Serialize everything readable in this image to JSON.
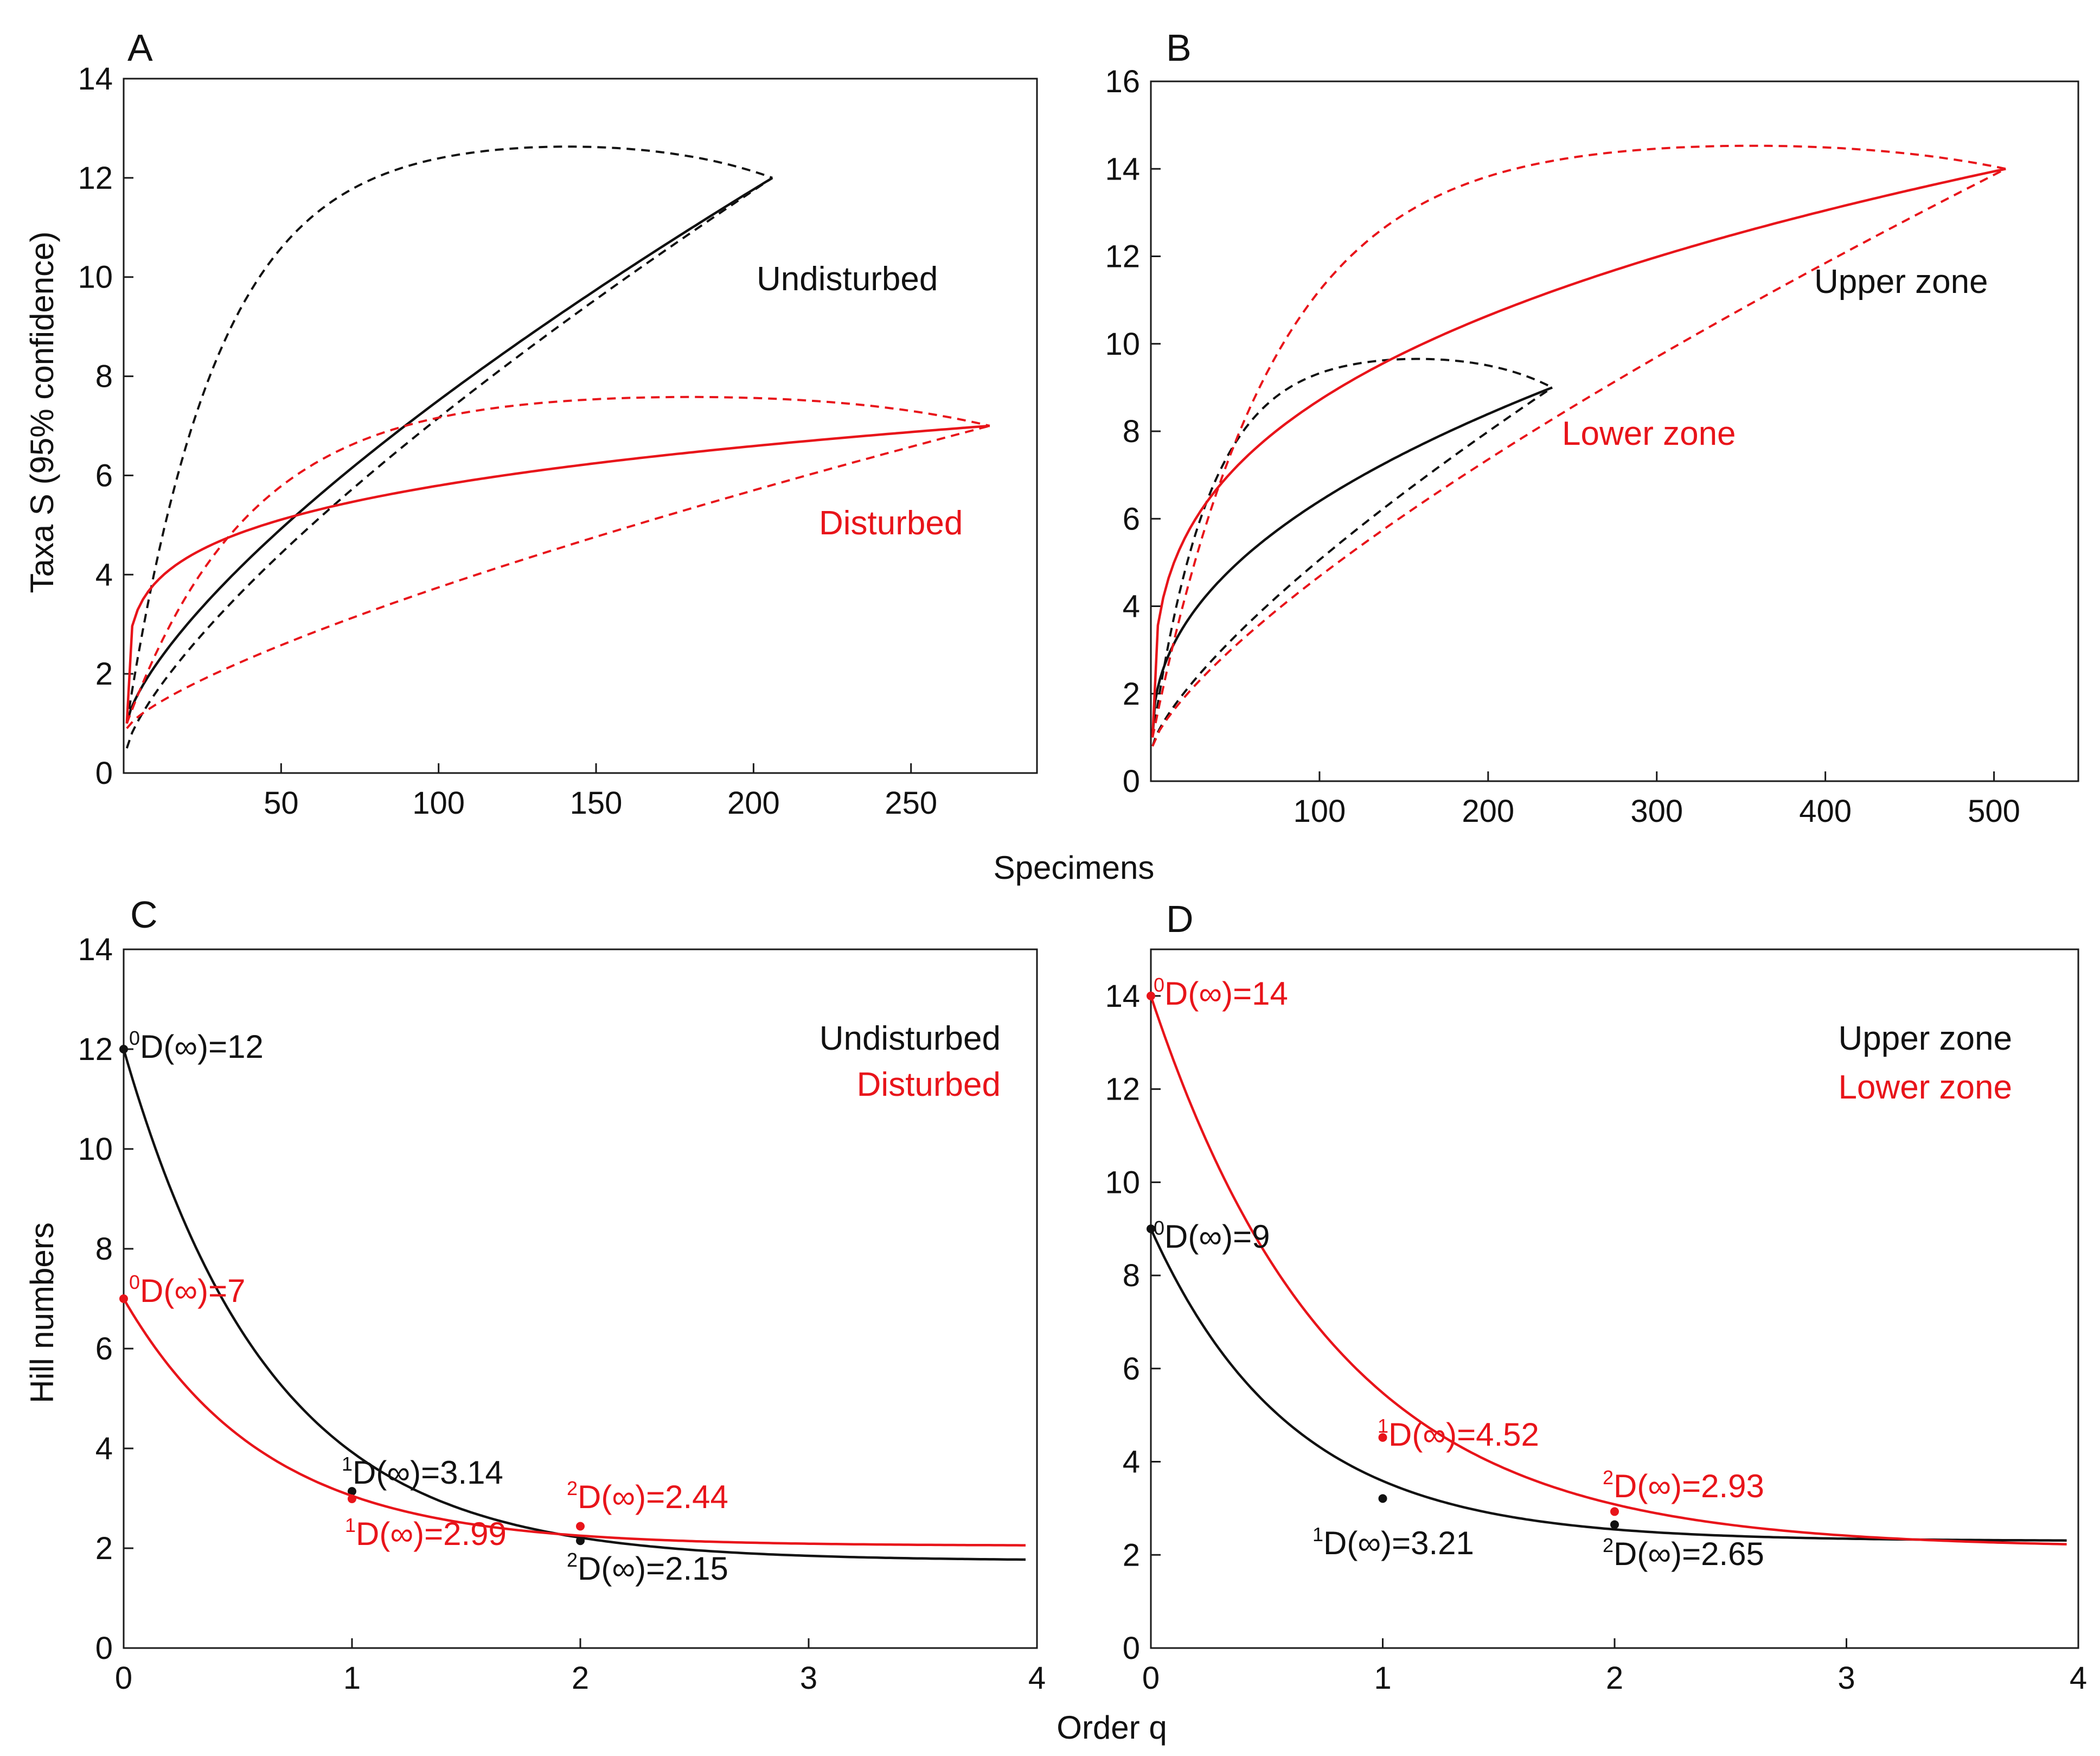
{
  "figure": {
    "x_label_top": "Specimens",
    "y_label_top": "Taxa S (95% confidence)",
    "x_label_bottom": "Order q",
    "y_label_bottom": "Hill numbers"
  },
  "colors": {
    "black": "#111111",
    "red": "#e8141a"
  },
  "chart_data": [
    {
      "panel": "A",
      "type": "line",
      "title": "A",
      "xlim": [
        0,
        290
      ],
      "ylim": [
        0,
        14
      ],
      "x_ticks": [
        50,
        100,
        150,
        200,
        250
      ],
      "y_ticks": [
        0,
        2,
        4,
        6,
        8,
        10,
        12,
        14
      ],
      "series": [
        {
          "name": "Undisturbed",
          "color": "black",
          "n": 206,
          "final": 12,
          "shape": 0.72,
          "upper_peak": 12.8,
          "lower_start": 0.5
        },
        {
          "name": "Disturbed",
          "color": "red",
          "n": 275,
          "final": 7,
          "shape": 0.22,
          "upper_peak": 7.7,
          "lower_start": 0.9
        }
      ],
      "labels": [
        {
          "text": "Undisturbed",
          "color": "black"
        },
        {
          "text": "Disturbed",
          "color": "red"
        }
      ]
    },
    {
      "panel": "B",
      "type": "line",
      "title": "B",
      "xlim": [
        0,
        550
      ],
      "ylim": [
        0,
        16
      ],
      "x_ticks": [
        100,
        200,
        300,
        400,
        500
      ],
      "y_ticks": [
        0,
        2,
        4,
        6,
        8,
        10,
        12,
        14,
        16
      ],
      "series": [
        {
          "name": "Upper zone",
          "color": "black",
          "n": 238,
          "final": 9,
          "shape": 0.45,
          "upper_peak": 9.8,
          "lower_start": 0.8
        },
        {
          "name": "Lower zone",
          "color": "red",
          "n": 507,
          "final": 14,
          "shape": 0.32,
          "upper_peak": 14.7,
          "lower_start": 0.8
        }
      ],
      "labels": [
        {
          "text": "Upper zone",
          "color": "black"
        },
        {
          "text": "Lower zone",
          "color": "red"
        }
      ]
    },
    {
      "panel": "C",
      "type": "line",
      "title": "C",
      "xlim": [
        0,
        4
      ],
      "ylim": [
        0,
        14
      ],
      "x_ticks": [
        0,
        1,
        2,
        3,
        4
      ],
      "y_ticks": [
        0,
        2,
        4,
        6,
        8,
        10,
        12,
        14
      ],
      "series": [
        {
          "name": "Undisturbed",
          "color": "black",
          "D0": 12,
          "Dinf": 1.75,
          "k": 1.55,
          "points": [
            [
              0,
              12
            ],
            [
              1,
              3.14
            ],
            [
              2,
              2.15
            ]
          ]
        },
        {
          "name": "Disturbed",
          "color": "red",
          "D0": 7,
          "Dinf": 2.05,
          "k": 1.6,
          "points": [
            [
              0,
              7
            ],
            [
              1,
              2.99
            ],
            [
              2,
              2.44
            ]
          ]
        }
      ],
      "legend": [
        {
          "text": "Undisturbed",
          "color": "black"
        },
        {
          "text": "Disturbed",
          "color": "red"
        }
      ],
      "annotations": [
        {
          "q": "0",
          "value": "D(∞)=12",
          "color": "black"
        },
        {
          "q": "1",
          "value": "D(∞)=3.14",
          "color": "black"
        },
        {
          "q": "2",
          "value": "D(∞)=2.15",
          "color": "black"
        },
        {
          "q": "0",
          "value": "D(∞)=7",
          "color": "red"
        },
        {
          "q": "1",
          "value": "D(∞)=2.99",
          "color": "red"
        },
        {
          "q": "2",
          "value": "D(∞)=2.44",
          "color": "red"
        }
      ]
    },
    {
      "panel": "D",
      "type": "line",
      "title": "D",
      "xlim": [
        0,
        4
      ],
      "ylim": [
        0,
        15
      ],
      "x_ticks": [
        0,
        1,
        2,
        3,
        4
      ],
      "y_ticks": [
        0,
        2,
        4,
        6,
        8,
        10,
        12,
        14
      ],
      "series": [
        {
          "name": "Upper zone",
          "color": "black",
          "D0": 9,
          "Dinf": 2.3,
          "k": 1.65,
          "points": [
            [
              0,
              9
            ],
            [
              1,
              3.21
            ],
            [
              2,
              2.65
            ]
          ]
        },
        {
          "name": "Lower zone",
          "color": "red",
          "D0": 14,
          "Dinf": 2.15,
          "k": 1.27,
          "points": [
            [
              0,
              14
            ],
            [
              1,
              4.52
            ],
            [
              2,
              2.93
            ]
          ]
        }
      ],
      "legend": [
        {
          "text": "Upper zone",
          "color": "black"
        },
        {
          "text": "Lower zone",
          "color": "red"
        }
      ],
      "annotations": [
        {
          "q": "0",
          "value": "D(∞)=9",
          "color": "black"
        },
        {
          "q": "1",
          "value": "D(∞)=3.21",
          "color": "black"
        },
        {
          "q": "2",
          "value": "D(∞)=2.65",
          "color": "black"
        },
        {
          "q": "0",
          "value": "D(∞)=14",
          "color": "red"
        },
        {
          "q": "1",
          "value": "D(∞)=4.52",
          "color": "red"
        },
        {
          "q": "2",
          "value": "D(∞)=2.93",
          "color": "red"
        }
      ]
    }
  ]
}
